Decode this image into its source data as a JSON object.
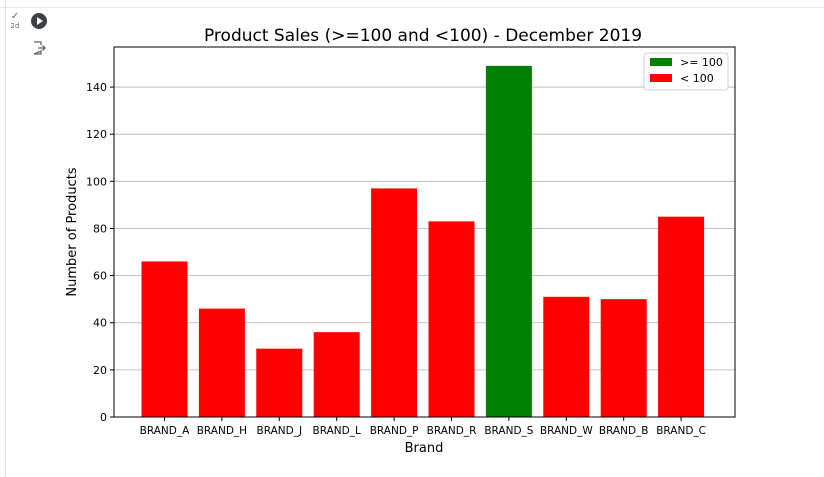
{
  "cell": {
    "status_check": "✓",
    "status_time": "2d"
  },
  "icons": {
    "run": "play-icon",
    "output": "output-redirect-icon"
  },
  "colors": {
    "high": "#008000",
    "low": "#ff0000",
    "grid": "#b0b0b0"
  },
  "chart_data": {
    "type": "bar",
    "title": "Product Sales (>=100 and <100) - December 2019",
    "xlabel": "Brand",
    "ylabel": "Number of Products",
    "categories": [
      "BRAND_A",
      "BRAND_H",
      "BRAND_J",
      "BRAND_L",
      "BRAND_P",
      "BRAND_R",
      "BRAND_S",
      "BRAND_W",
      "BRAND_B",
      "BRAND_C"
    ],
    "values": [
      66,
      46,
      29,
      36,
      97,
      83,
      149,
      51,
      50,
      85
    ],
    "ylim": [
      0,
      157
    ],
    "yticks": [
      0,
      20,
      40,
      60,
      80,
      100,
      120,
      140
    ],
    "grid": "horizontal",
    "legend_position": "top-right",
    "legend": [
      {
        "label": ">= 100",
        "color": "#008000"
      },
      {
        "label": "< 100",
        "color": "#ff0000"
      }
    ]
  }
}
